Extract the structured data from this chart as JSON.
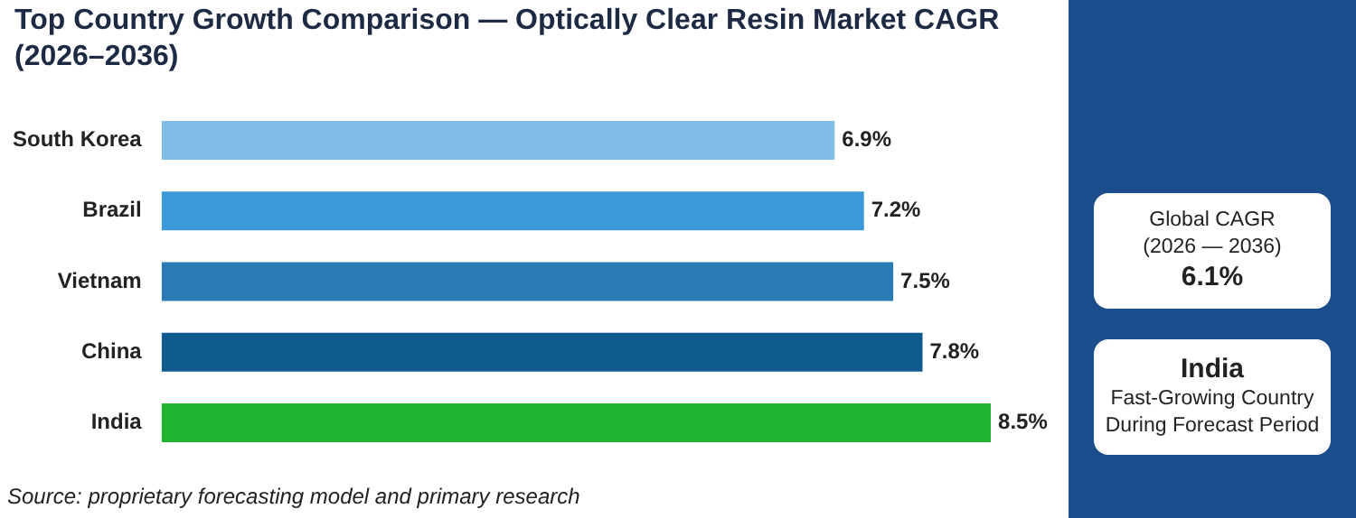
{
  "chart_data": {
    "type": "bar",
    "orientation": "horizontal",
    "title": "Top Country Growth Comparison — Optically Clear Resin Market CAGR (2026–2036)",
    "categories": [
      "South Korea",
      "Brazil",
      "Vietnam",
      "China",
      "India"
    ],
    "values": [
      6.9,
      7.2,
      7.5,
      7.8,
      8.5
    ],
    "colors": [
      "#7fbde6",
      "#3a9ad9",
      "#2a7ab6",
      "#0e5a8e",
      "#1fb530"
    ],
    "value_labels": [
      "6.9%",
      "7.2%",
      "7.5%",
      "7.8%",
      "8.5%"
    ],
    "tick_labels": "y",
    "legend": false,
    "annotations": [
      "Source: proprietary forecasting model and primary research",
      "Global CAGR",
      "(2026 — 2036)",
      "6.1%",
      "India",
      "Fast-Growing Country",
      "During Forecast Period"
    ]
  }
}
